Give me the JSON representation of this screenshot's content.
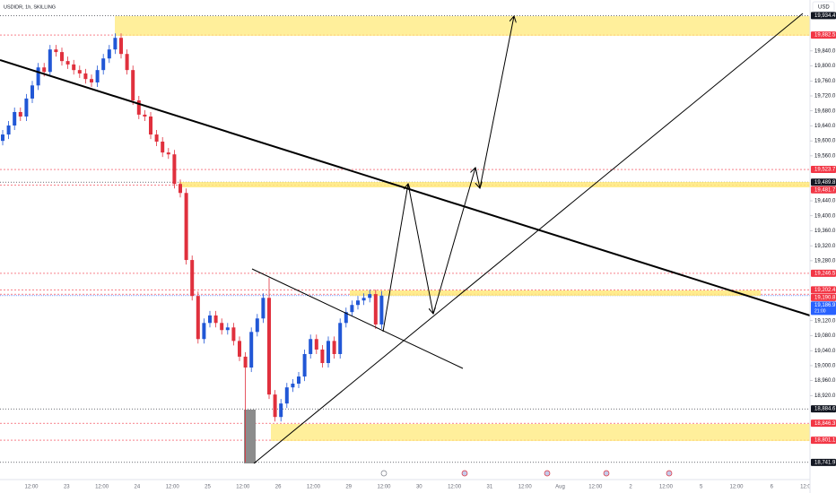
{
  "chart_data": {
    "type": "candlestick",
    "title": "USDIDR, 1h, SKILLING",
    "currency": "USD",
    "up_color": "#2157d6",
    "down_color": "#e0303d",
    "ylim": [
      18696,
      19976
    ],
    "yticks": [
      {
        "value": 19840,
        "label": "19,840.0"
      },
      {
        "value": 19800,
        "label": "19,800.0"
      },
      {
        "value": 19760,
        "label": "19,760.0"
      },
      {
        "value": 19720,
        "label": "19,720.0"
      },
      {
        "value": 19680,
        "label": "19,680.0"
      },
      {
        "value": 19640,
        "label": "19,640.0"
      },
      {
        "value": 19600,
        "label": "19,600.0"
      },
      {
        "value": 19560,
        "label": "19,560.0"
      },
      {
        "value": 19440,
        "label": "19,440.0"
      },
      {
        "value": 19400,
        "label": "19,400.0"
      },
      {
        "value": 19360,
        "label": "19,360.0"
      },
      {
        "value": 19320,
        "label": "19,320.0"
      },
      {
        "value": 19280,
        "label": "19,280.0"
      },
      {
        "value": 19120,
        "label": "19,120.0"
      },
      {
        "value": 19080,
        "label": "19,080.0"
      },
      {
        "value": 19040,
        "label": "19,040.0"
      },
      {
        "value": 19000,
        "label": "19,000.0"
      },
      {
        "value": 18960,
        "label": "18,960.0"
      },
      {
        "value": 18920,
        "label": "18,920.0"
      }
    ],
    "price_labels": [
      {
        "value": 19934.4,
        "label": "19,934.4",
        "kind": "level"
      },
      {
        "value": 19882.5,
        "label": "19,882.5",
        "kind": "alert"
      },
      {
        "value": 19523.7,
        "label": "19,523.7",
        "kind": "alert"
      },
      {
        "value": 19489.8,
        "label": "19,489.8",
        "kind": "level"
      },
      {
        "value": 19481.7,
        "label": "19,481.7",
        "kind": "alert"
      },
      {
        "value": 19246.5,
        "label": "19,246.5",
        "kind": "alert"
      },
      {
        "value": 19202.4,
        "label": "19,202.4",
        "kind": "alert"
      },
      {
        "value": 19190.8,
        "label": "19,190.8",
        "kind": "alert"
      },
      {
        "value": 19186.9,
        "label": "19,186.9",
        "kind": "last"
      },
      {
        "value": 18884.6,
        "label": "18,884.6",
        "kind": "level"
      },
      {
        "value": 18846.3,
        "label": "18,846.3",
        "kind": "alert"
      },
      {
        "value": 18801.1,
        "label": "18,801.1",
        "kind": "alert"
      },
      {
        "value": 18741.9,
        "label": "18,741.9",
        "kind": "level"
      }
    ],
    "countdown": "21:00",
    "time_axis": [
      "12:00",
      "23",
      "12:00",
      "24",
      "12:00",
      "25",
      "12:00",
      "26",
      "12:00",
      "29",
      "12:00",
      "30",
      "12:00",
      "31",
      "12:00",
      "Aug",
      "12:00",
      "2",
      "12:00",
      "5",
      "12:00",
      "6",
      "12:00"
    ],
    "open": [
      19600,
      19617,
      19641,
      19677,
      19665,
      19713,
      19748,
      19796,
      19784,
      19844,
      19837,
      19813,
      19804,
      19789,
      19780,
      19765,
      19756,
      19789,
      19820,
      19844,
      19875,
      19832,
      19789,
      19708,
      19670,
      19665,
      19617,
      19598,
      19569,
      19564,
      19485,
      19461,
      19282,
      19186,
      19071,
      19114,
      19134,
      19114,
      19095,
      19102,
      19066,
      19024,
      18995,
      19090,
      19126,
      19181,
      18923,
      18863,
      18899,
      18942,
      18952,
      18971,
      19031,
      19071,
      19043,
      19007,
      19066,
      19031,
      19114,
      19143,
      19162,
      19174,
      19181,
      19191,
      19110
    ],
    "high": [
      19629,
      19653,
      19689,
      19689,
      19725,
      19760,
      19808,
      19808,
      19856,
      19856,
      19849,
      19825,
      19816,
      19801,
      19792,
      19777,
      19801,
      19832,
      19856,
      19887,
      19887,
      19844,
      19801,
      19720,
      19682,
      19677,
      19629,
      19610,
      19581,
      19576,
      19497,
      19473,
      19294,
      19198,
      19126,
      19146,
      19146,
      19126,
      19114,
      19114,
      19078,
      19036,
      19102,
      19138,
      19193,
      19234,
      18935,
      18911,
      18954,
      18964,
      18983,
      19043,
      19083,
      19083,
      19055,
      19078,
      19078,
      19126,
      19155,
      19174,
      19186,
      19193,
      19203,
      19203,
      19199
    ],
    "low": [
      19588,
      19605,
      19629,
      19653,
      19653,
      19701,
      19736,
      19772,
      19772,
      19825,
      19801,
      19792,
      19777,
      19768,
      19753,
      19744,
      19744,
      19777,
      19808,
      19832,
      19820,
      19777,
      19696,
      19658,
      19653,
      19605,
      19586,
      19557,
      19552,
      19473,
      19449,
      19270,
      19174,
      19059,
      19059,
      19102,
      19102,
      19083,
      19083,
      19054,
      19012,
      18742,
      18983,
      19078,
      19114,
      18911,
      18851,
      18851,
      18887,
      18930,
      18940,
      18959,
      19019,
      19031,
      18995,
      18995,
      19019,
      19019,
      19102,
      19131,
      19150,
      19162,
      19169,
      19098,
      19098
    ],
    "close": [
      19617,
      19641,
      19677,
      19665,
      19713,
      19748,
      19796,
      19784,
      19844,
      19837,
      19813,
      19804,
      19789,
      19780,
      19765,
      19756,
      19789,
      19820,
      19844,
      19875,
      19832,
      19789,
      19708,
      19670,
      19665,
      19617,
      19598,
      19569,
      19564,
      19485,
      19461,
      19282,
      19186,
      19071,
      19114,
      19134,
      19114,
      19095,
      19102,
      19066,
      19024,
      18995,
      19090,
      19126,
      19181,
      18923,
      18863,
      18899,
      18942,
      18952,
      18971,
      19031,
      19071,
      19043,
      19007,
      19066,
      19031,
      19114,
      19143,
      19162,
      19174,
      19181,
      19191,
      19110,
      19187
    ]
  }
}
